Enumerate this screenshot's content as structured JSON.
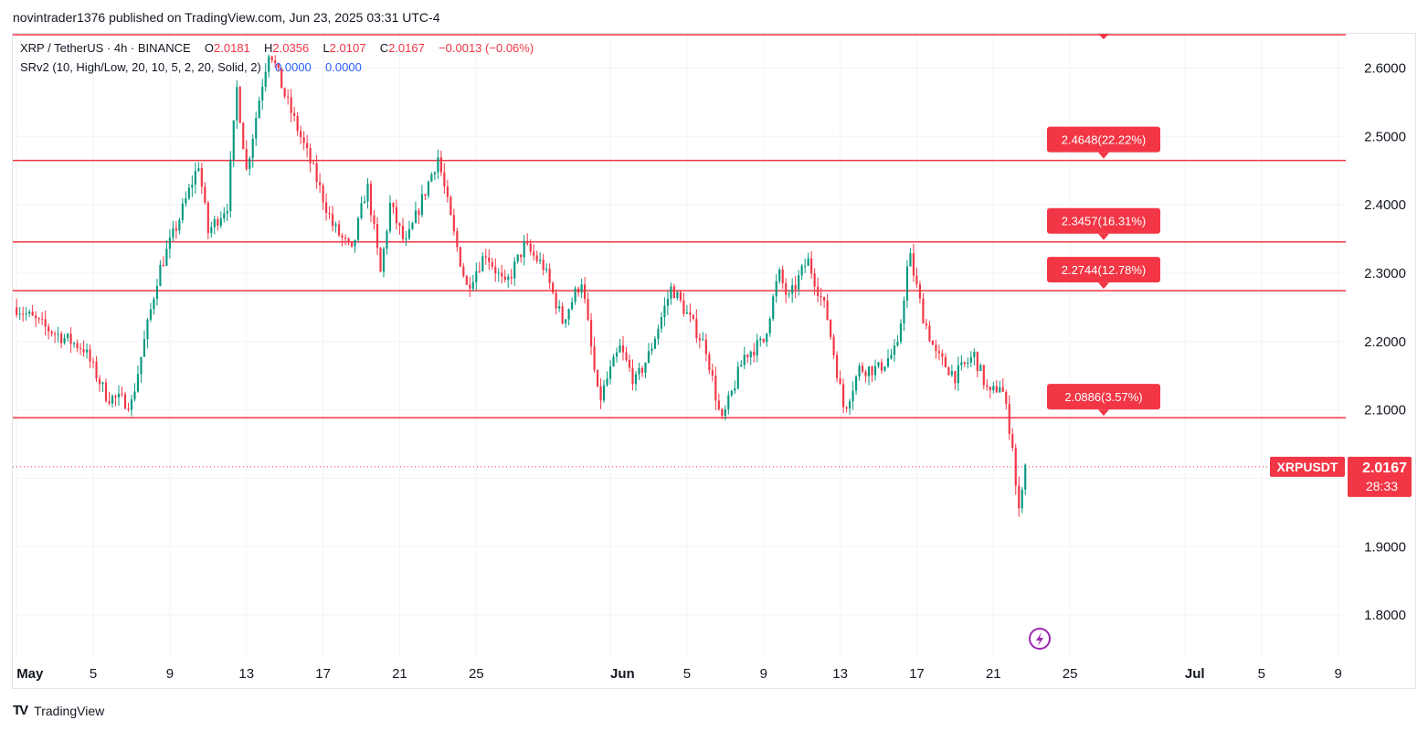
{
  "header": {
    "published": "novintrader1376 published on TradingView.com, Jun 23, 2025 03:31 UTC-4"
  },
  "legend": {
    "symbol": "XRP / TetherUS · 4h · BINANCE",
    "o_label": "O",
    "o_value": "2.0181",
    "h_label": "H",
    "h_value": "2.0356",
    "l_label": "L",
    "l_value": "2.0107",
    "c_label": "C",
    "c_value": "2.0167",
    "change": "−0.0013 (−0.06%)",
    "indicator": "SRv2 (10, High/Low, 20, 10, 5, 2, 20, Solid, 2)",
    "ind_val1": "0.0000",
    "ind_val2": "0.0000"
  },
  "footer": {
    "brand": "TradingView"
  },
  "chart_data": {
    "type": "candlestick",
    "symbol": "XRPUSDT",
    "timeframe": "4h",
    "ylim": [
      1.74,
      2.65
    ],
    "y_ticks": [
      1.8,
      1.9,
      2.0,
      2.1,
      2.2,
      2.3,
      2.4,
      2.5,
      2.6
    ],
    "y_tick_labels": [
      "1.8000",
      "1.9000",
      "",
      "2.1000",
      "2.2000",
      "2.3000",
      "2.4000",
      "2.5000",
      "2.6000"
    ],
    "x_range": [
      "May 1",
      "Jul 9"
    ],
    "x_ticks": [
      {
        "day": 1,
        "label": "May",
        "bold": true
      },
      {
        "day": 5,
        "label": "5"
      },
      {
        "day": 9,
        "label": "9"
      },
      {
        "day": 13,
        "label": "13"
      },
      {
        "day": 17,
        "label": "17"
      },
      {
        "day": 21,
        "label": "21"
      },
      {
        "day": 25,
        "label": "25"
      },
      {
        "day": 32,
        "label": "Jun",
        "bold": true
      },
      {
        "day": 36,
        "label": "5"
      },
      {
        "day": 40,
        "label": "9"
      },
      {
        "day": 44,
        "label": "13"
      },
      {
        "day": 48,
        "label": "17"
      },
      {
        "day": 52,
        "label": "21"
      },
      {
        "day": 56,
        "label": "25"
      },
      {
        "day": 62,
        "label": "Jul",
        "bold": true
      },
      {
        "day": 66,
        "label": "5"
      },
      {
        "day": 70,
        "label": "9"
      }
    ],
    "keypoints": [
      [
        1.0,
        2.25
      ],
      [
        2.5,
        2.22
      ],
      [
        4.5,
        2.19
      ],
      [
        5.7,
        2.12
      ],
      [
        7.0,
        2.11
      ],
      [
        8.4,
        2.3
      ],
      [
        9.5,
        2.38
      ],
      [
        10.5,
        2.46
      ],
      [
        11.0,
        2.36
      ],
      [
        12.0,
        2.4
      ],
      [
        12.5,
        2.57
      ],
      [
        13.0,
        2.45
      ],
      [
        13.7,
        2.56
      ],
      [
        14.2,
        2.63
      ],
      [
        15.0,
        2.56
      ],
      [
        16.5,
        2.45
      ],
      [
        17.5,
        2.37
      ],
      [
        18.5,
        2.33
      ],
      [
        19.3,
        2.43
      ],
      [
        20.0,
        2.3
      ],
      [
        20.5,
        2.4
      ],
      [
        21.3,
        2.34
      ],
      [
        22.2,
        2.41
      ],
      [
        23.0,
        2.47
      ],
      [
        23.8,
        2.36
      ],
      [
        24.5,
        2.28
      ],
      [
        25.5,
        2.33
      ],
      [
        26.5,
        2.28
      ],
      [
        27.5,
        2.34
      ],
      [
        28.5,
        2.31
      ],
      [
        29.5,
        2.23
      ],
      [
        30.5,
        2.29
      ],
      [
        31.4,
        2.11
      ],
      [
        31.9,
        2.15
      ],
      [
        32.5,
        2.19
      ],
      [
        33.3,
        2.14
      ],
      [
        34.0,
        2.18
      ],
      [
        35.2,
        2.28
      ],
      [
        36.0,
        2.24
      ],
      [
        37.0,
        2.19
      ],
      [
        37.8,
        2.08
      ],
      [
        39.0,
        2.18
      ],
      [
        40.0,
        2.2
      ],
      [
        40.8,
        2.3
      ],
      [
        41.3,
        2.26
      ],
      [
        42.3,
        2.32
      ],
      [
        43.3,
        2.24
      ],
      [
        44.2,
        2.1
      ],
      [
        45.0,
        2.16
      ],
      [
        46.0,
        2.16
      ],
      [
        47.0,
        2.19
      ],
      [
        47.6,
        2.33
      ],
      [
        48.3,
        2.24
      ],
      [
        49.0,
        2.18
      ],
      [
        50.0,
        2.15
      ],
      [
        51.0,
        2.18
      ],
      [
        51.8,
        2.12
      ],
      [
        52.4,
        2.14
      ],
      [
        53.0,
        2.05
      ],
      [
        53.3,
        1.94
      ],
      [
        53.6,
        2.02
      ],
      [
        53.8,
        2.017
      ]
    ],
    "levels": [
      {
        "value": 2.0886,
        "label": "2.0886(3.57%)"
      },
      {
        "value": 2.2744,
        "label": "2.2744(12.78%)"
      },
      {
        "value": 2.3457,
        "label": "2.3457(16.31%)"
      },
      {
        "value": 2.4648,
        "label": "2.4648(22.22%)"
      }
    ],
    "top_level": 2.65,
    "current_price": {
      "symbol": "XRPUSDT",
      "price": "2.0167",
      "countdown": "28:33",
      "value": 2.0167
    },
    "colors": {
      "up": "#089981",
      "down": "#f23645",
      "level": "#f23645",
      "grid": "#f0f3fa"
    }
  }
}
